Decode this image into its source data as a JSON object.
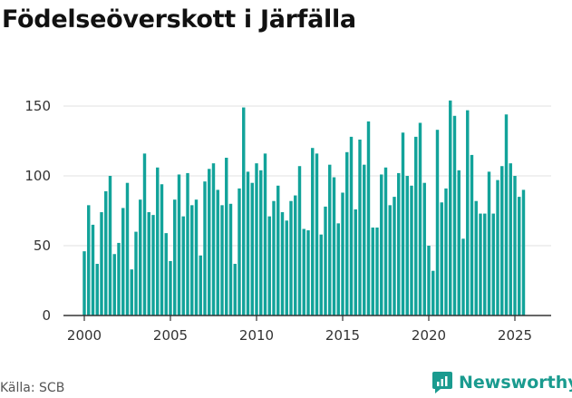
{
  "title": "Födelseöverskott i Järfälla",
  "source": "Källa: SCB",
  "brand": {
    "name": "Newsworthy"
  },
  "colors": {
    "bar": "#12a39a",
    "brand": "#1a9b8f",
    "grid": "#e2e2e2",
    "axis": "#333333"
  },
  "chart_data": {
    "type": "bar",
    "title": "Födelseöverskott i Järfälla",
    "xlabel": "",
    "ylabel": "",
    "xlim": [
      1999.5,
      2026.5
    ],
    "ylim": [
      0,
      160
    ],
    "yticks": [
      0,
      50,
      100,
      150
    ],
    "xticks": [
      2000,
      2005,
      2010,
      2015,
      2020,
      2025
    ],
    "x_start": 2000.0,
    "x_step": 0.25,
    "grid": true,
    "values": [
      46,
      79,
      65,
      37,
      74,
      89,
      100,
      44,
      52,
      77,
      95,
      33,
      60,
      83,
      116,
      74,
      72,
      106,
      94,
      59,
      39,
      83,
      101,
      71,
      102,
      79,
      83,
      43,
      96,
      105,
      109,
      90,
      79,
      113,
      80,
      37,
      91,
      149,
      103,
      95,
      109,
      104,
      116,
      71,
      82,
      93,
      74,
      68,
      82,
      86,
      107,
      62,
      61,
      120,
      116,
      58,
      78,
      108,
      99,
      66,
      88,
      117,
      128,
      76,
      126,
      108,
      139,
      63,
      63,
      101,
      106,
      79,
      85,
      102,
      131,
      100,
      93,
      128,
      138,
      95,
      50,
      32,
      133,
      81,
      91,
      154,
      143,
      104,
      55,
      147,
      115,
      82,
      73,
      73,
      103,
      73,
      97,
      107,
      144,
      109,
      100,
      85,
      90
    ]
  }
}
